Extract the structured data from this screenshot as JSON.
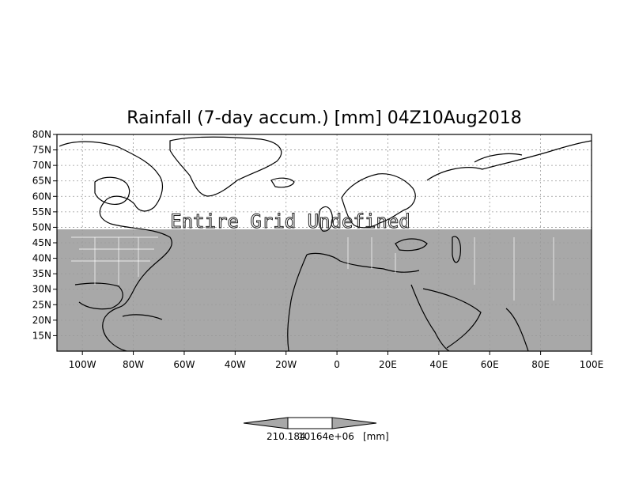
{
  "map": {
    "title": "Rainfall (7-day accum.) [mm] 04Z10Aug2018",
    "overlay_text": "Entire Grid Undefined",
    "lon_labels": [
      "100W",
      "80W",
      "60W",
      "40W",
      "20W",
      "0",
      "20E",
      "40E",
      "60E",
      "80E",
      "100E"
    ],
    "lat_labels": [
      "80N",
      "75N",
      "70N",
      "65N",
      "60N",
      "55N",
      "50N",
      "45N",
      "40N",
      "35N",
      "30N",
      "25N",
      "20N",
      "15N"
    ],
    "lon_range": [
      "110W",
      "100E"
    ],
    "lat_range": [
      "10N",
      "80N"
    ],
    "shaded_lat_range": [
      "10N",
      "50N"
    ],
    "grid": true,
    "colors": {
      "land_fill": "#a8a8a8",
      "coast": "#000000",
      "background": "#ffffff"
    }
  },
  "colorbar": {
    "labels": "210.184",
    "label_overlap": "10164e+06",
    "unit": "[mm]",
    "colors": {
      "arrows": "#a8a8a8",
      "center": "#ffffff"
    }
  }
}
